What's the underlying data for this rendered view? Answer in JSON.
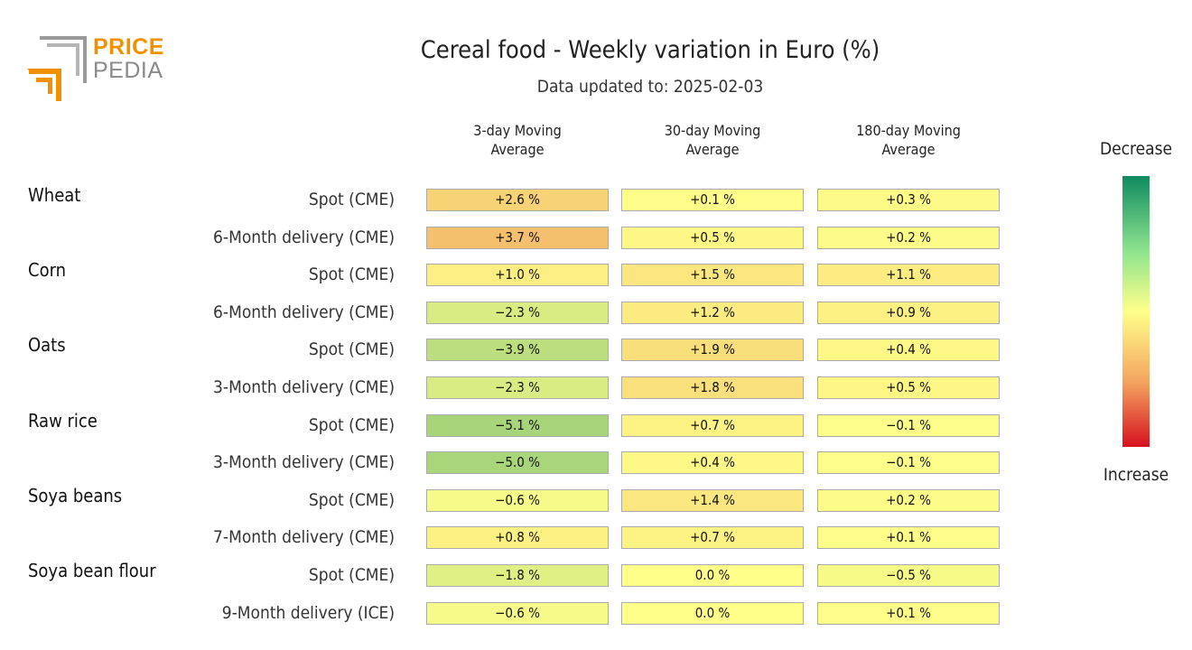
{
  "logo": {
    "line1": "PRICE",
    "line2": "PEDIA"
  },
  "title": "Cereal food - Weekly variation in Euro (%)",
  "subtitle": "Data updated to: 2025-02-03",
  "legend": {
    "top": "Decrease",
    "bottom": "Increase"
  },
  "chart_data": {
    "type": "table",
    "columns": [
      {
        "line1": "3-day Moving",
        "line2": "Average"
      },
      {
        "line1": "30-day Moving",
        "line2": "Average"
      },
      {
        "line1": "180-day Moving",
        "line2": "Average"
      }
    ],
    "groups": [
      "Wheat",
      "Corn",
      "Oats",
      "Raw rice",
      "Soya beans",
      "Soya bean flour"
    ],
    "rows": [
      {
        "group": "Wheat",
        "label": "Spot (CME)",
        "values": [
          "+2.6 %",
          "+0.1 %",
          "+0.3 %"
        ]
      },
      {
        "group": "Wheat",
        "label": "6-Month delivery (CME)",
        "values": [
          "+3.7 %",
          "+0.5 %",
          "+0.2 %"
        ]
      },
      {
        "group": "Corn",
        "label": "Spot (CME)",
        "values": [
          "+1.0 %",
          "+1.5 %",
          "+1.1 %"
        ]
      },
      {
        "group": "Corn",
        "label": "6-Month delivery (CME)",
        "values": [
          "−2.3 %",
          "+1.2 %",
          "+0.9 %"
        ]
      },
      {
        "group": "Oats",
        "label": "Spot (CME)",
        "values": [
          "−3.9 %",
          "+1.9 %",
          "+0.4 %"
        ]
      },
      {
        "group": "Oats",
        "label": "3-Month delivery (CME)",
        "values": [
          "−2.3 %",
          "+1.8 %",
          "+0.5 %"
        ]
      },
      {
        "group": "Raw rice",
        "label": "Spot (CME)",
        "values": [
          "−5.1 %",
          "+0.7 %",
          "−0.1 %"
        ]
      },
      {
        "group": "Raw rice",
        "label": "3-Month delivery (CME)",
        "values": [
          "−5.0 %",
          "+0.4 %",
          "−0.1 %"
        ]
      },
      {
        "group": "Soya beans",
        "label": "Spot (CME)",
        "values": [
          "−0.6 %",
          "+1.4 %",
          "+0.2 %"
        ]
      },
      {
        "group": "Soya beans",
        "label": "7-Month delivery (CME)",
        "values": [
          "+0.8 %",
          "+0.7 %",
          "+0.1 %"
        ]
      },
      {
        "group": "Soya bean flour",
        "label": "Spot (CME)",
        "values": [
          "−1.8 %",
          "0.0 %",
          "−0.5 %"
        ]
      },
      {
        "group": "Soya bean flour",
        "label": "9-Month delivery (ICE)",
        "values": [
          "−0.6 %",
          "0.0 %",
          "+0.1 %"
        ]
      }
    ],
    "colors": {
      "decrease": "#0f8a5f",
      "neutral": "#ffff8a",
      "increase": "#d6111f"
    }
  }
}
